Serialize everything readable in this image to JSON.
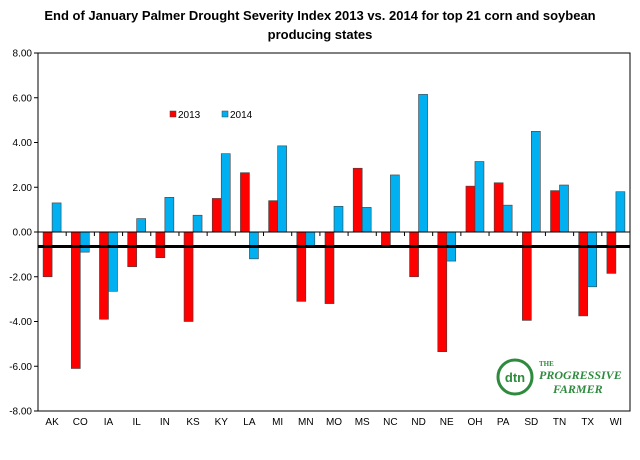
{
  "chart_data": {
    "type": "bar",
    "title": "End of January Palmer Drought Severity Index 2013 vs. 2014 for top 21 corn and soybean producing states",
    "categories": [
      "AK",
      "CO",
      "IA",
      "IL",
      "IN",
      "KS",
      "KY",
      "LA",
      "MI",
      "MN",
      "MO",
      "MS",
      "NC",
      "ND",
      "NE",
      "OH",
      "PA",
      "SD",
      "TN",
      "TX",
      "WI"
    ],
    "series": [
      {
        "name": "2013",
        "color": "#ff0000",
        "values": [
          -2.0,
          -6.1,
          -3.9,
          -1.55,
          -1.15,
          -4.0,
          1.5,
          2.65,
          1.4,
          -3.1,
          -3.2,
          2.85,
          -0.65,
          -2.0,
          -5.35,
          2.05,
          2.2,
          -3.95,
          1.85,
          -3.75,
          -1.85
        ]
      },
      {
        "name": "2014",
        "color": "#00b0f0",
        "values": [
          1.3,
          -0.9,
          -2.65,
          0.6,
          1.55,
          0.75,
          3.5,
          -1.2,
          3.85,
          -0.65,
          1.15,
          1.1,
          2.55,
          6.15,
          -1.3,
          3.15,
          1.2,
          4.5,
          2.1,
          -2.45,
          1.8
        ]
      }
    ],
    "ylim": [
      -8,
      8
    ],
    "yticks": [
      -8,
      -6,
      -4,
      -2,
      0,
      2,
      4,
      6,
      8
    ],
    "ytick_labels": [
      "-8.00",
      "-6.00",
      "-4.00",
      "-2.00",
      "0.00",
      "2.00",
      "4.00",
      "6.00",
      "8.00"
    ],
    "reference_line": -0.65,
    "legend_position": "upper-left inside plot",
    "grid": false
  },
  "logo": {
    "brand": "dtn",
    "line1": "THE",
    "line2": "PROGRESSIVE",
    "line3": "FARMER",
    "color": "#2e8b3e"
  }
}
